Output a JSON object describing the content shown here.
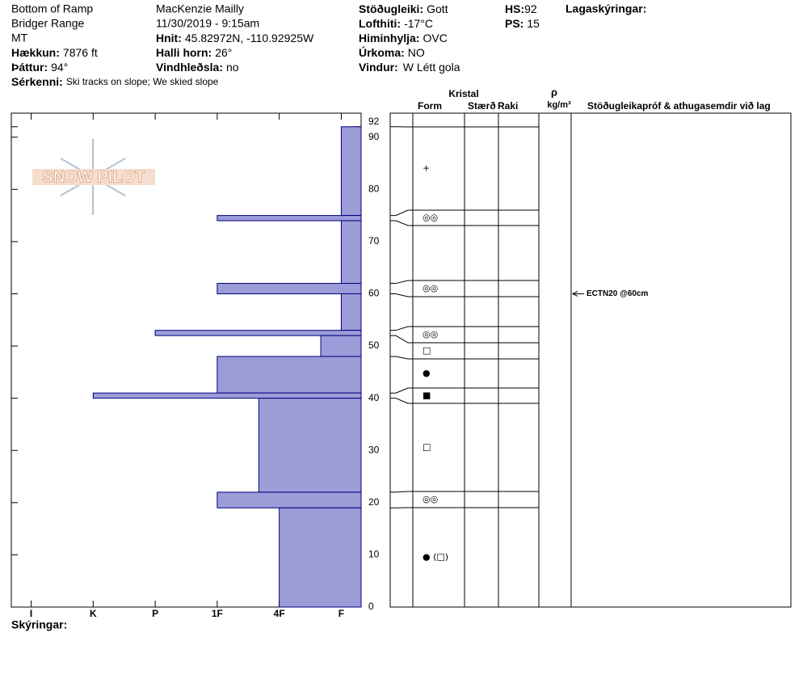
{
  "header": {
    "site": "Bottom of Ramp",
    "range": "Bridger Range",
    "state": "MT",
    "observer": "MacKenzie Mailly",
    "datetime": "11/30/2019 - 9:15am",
    "fields": [
      {
        "label": "Hækkun:",
        "value": "7876 ft"
      },
      {
        "label": "Þáttur:",
        "value": "94°"
      },
      {
        "label": "Sérkenni:",
        "value": "Ski tracks on slope; We skied slope"
      },
      {
        "label": "Hnit:",
        "value": "45.82972N, -110.92925W"
      },
      {
        "label": "Halli horn:",
        "value": "26°"
      },
      {
        "label": "Vindhleðsla:",
        "value": "no"
      },
      {
        "label": "Stöðugleiki:",
        "value": "Gott"
      },
      {
        "label": "Lofthiti:",
        "value": "-17°C"
      },
      {
        "label": "Himinhylja:",
        "value": "OVC"
      },
      {
        "label": "Úrkoma:",
        "value": "NO"
      },
      {
        "label": "Vindur:",
        "value": "W Létt gola"
      },
      {
        "label": "HS:",
        "value": "92"
      },
      {
        "label": "PS:",
        "value": "15"
      }
    ],
    "layer_notes_label": "Lagaskýringar:",
    "notes_label": "Skýringar:",
    "logo": "SNOW PILOT"
  },
  "table_headers": {
    "crystal": "Kristal",
    "form": "Form",
    "size": "Stærð",
    "moisture": "Raki",
    "density": "ρ",
    "density_unit": "kg/m³",
    "comments": "Stöðugleikapróf & athugasemdir við lag"
  },
  "chart_data": {
    "type": "snow-profile",
    "color": "#9c9cd8",
    "ylim": [
      0,
      94.6
    ],
    "yticks": [
      0,
      10,
      20,
      30,
      40,
      50,
      60,
      70,
      80,
      90,
      92
    ],
    "xlim": [
      6.32,
      0.68
    ],
    "xticks": [
      {
        "value": 6,
        "label": "I"
      },
      {
        "value": 5,
        "label": "K"
      },
      {
        "value": 4,
        "label": "P"
      },
      {
        "value": 3,
        "label": "1F"
      },
      {
        "value": 2,
        "label": "4F"
      },
      {
        "value": 1,
        "label": "F"
      }
    ],
    "layers": [
      {
        "top": 92,
        "bottom": 75,
        "hardness": 1,
        "form": "+"
      },
      {
        "top": 75,
        "bottom": 74,
        "hardness": 3,
        "form": "◎◎"
      },
      {
        "top": 74,
        "bottom": 62,
        "hardness": 1,
        "form": null
      },
      {
        "top": 62,
        "bottom": 60,
        "hardness": 3,
        "form": "◎◎"
      },
      {
        "top": 60,
        "bottom": 53,
        "hardness": 1,
        "form": null
      },
      {
        "top": 53,
        "bottom": 52,
        "hardness": 4,
        "form": "◎◎"
      },
      {
        "top": 52,
        "bottom": 48,
        "hardness": 1.33,
        "form": "□"
      },
      {
        "top": 48,
        "bottom": 41,
        "hardness": 3,
        "form": "●"
      },
      {
        "top": 41,
        "bottom": 40,
        "hardness": 5,
        "form": "■"
      },
      {
        "top": 40,
        "bottom": 22,
        "hardness": 2.33,
        "form": "□"
      },
      {
        "top": 22,
        "bottom": 19,
        "hardness": 3,
        "form": "◎◎"
      },
      {
        "top": 19,
        "bottom": 0,
        "hardness": 2,
        "form": "● (□)"
      }
    ],
    "tests": [
      {
        "height": 60,
        "label": "ECTN20 @60cm"
      }
    ]
  }
}
